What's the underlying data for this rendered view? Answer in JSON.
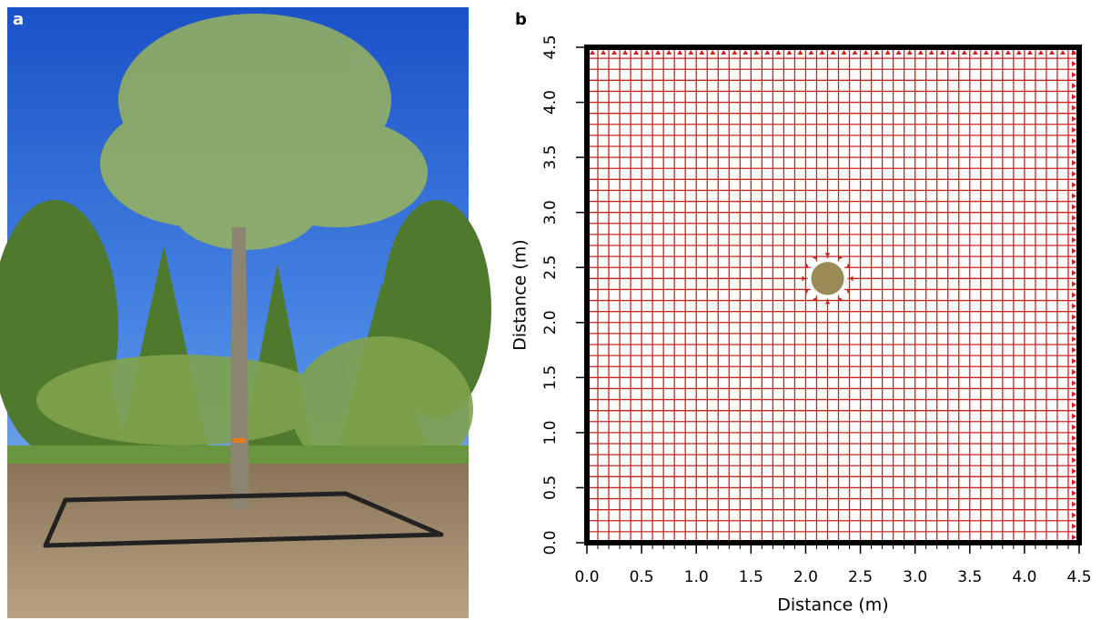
{
  "panels": {
    "a": "a",
    "b": "b"
  },
  "chart_data": {
    "type": "grid",
    "xlabel": "Distance (m)",
    "ylabel": "Distance (m)",
    "xlim": [
      0,
      4.5
    ],
    "ylim": [
      0,
      4.5
    ],
    "xticks": [
      {
        "value": 0,
        "label": "0.0"
      },
      0.5,
      {
        "value": 1,
        "label": "1.0"
      },
      1.5,
      {
        "value": 2,
        "label": "2.0"
      },
      2.5,
      {
        "value": 3,
        "label": "3.0"
      },
      3.5,
      {
        "value": 4,
        "label": "4.0"
      },
      4.5
    ],
    "yticks": [
      {
        "value": 0,
        "label": "0.0"
      },
      0.5,
      {
        "value": 1,
        "label": "1.0"
      },
      1.5,
      {
        "value": 2,
        "label": "2.0"
      },
      2.5,
      {
        "value": 3,
        "label": "3.0"
      },
      3.5,
      {
        "value": 4,
        "label": "4.0"
      },
      4.5
    ],
    "cell_size": 0.1,
    "grid_color": "#cc2222",
    "tree": {
      "x": 2.2,
      "y": 2.4,
      "radius": 0.15,
      "color": "#9a8a55"
    }
  }
}
